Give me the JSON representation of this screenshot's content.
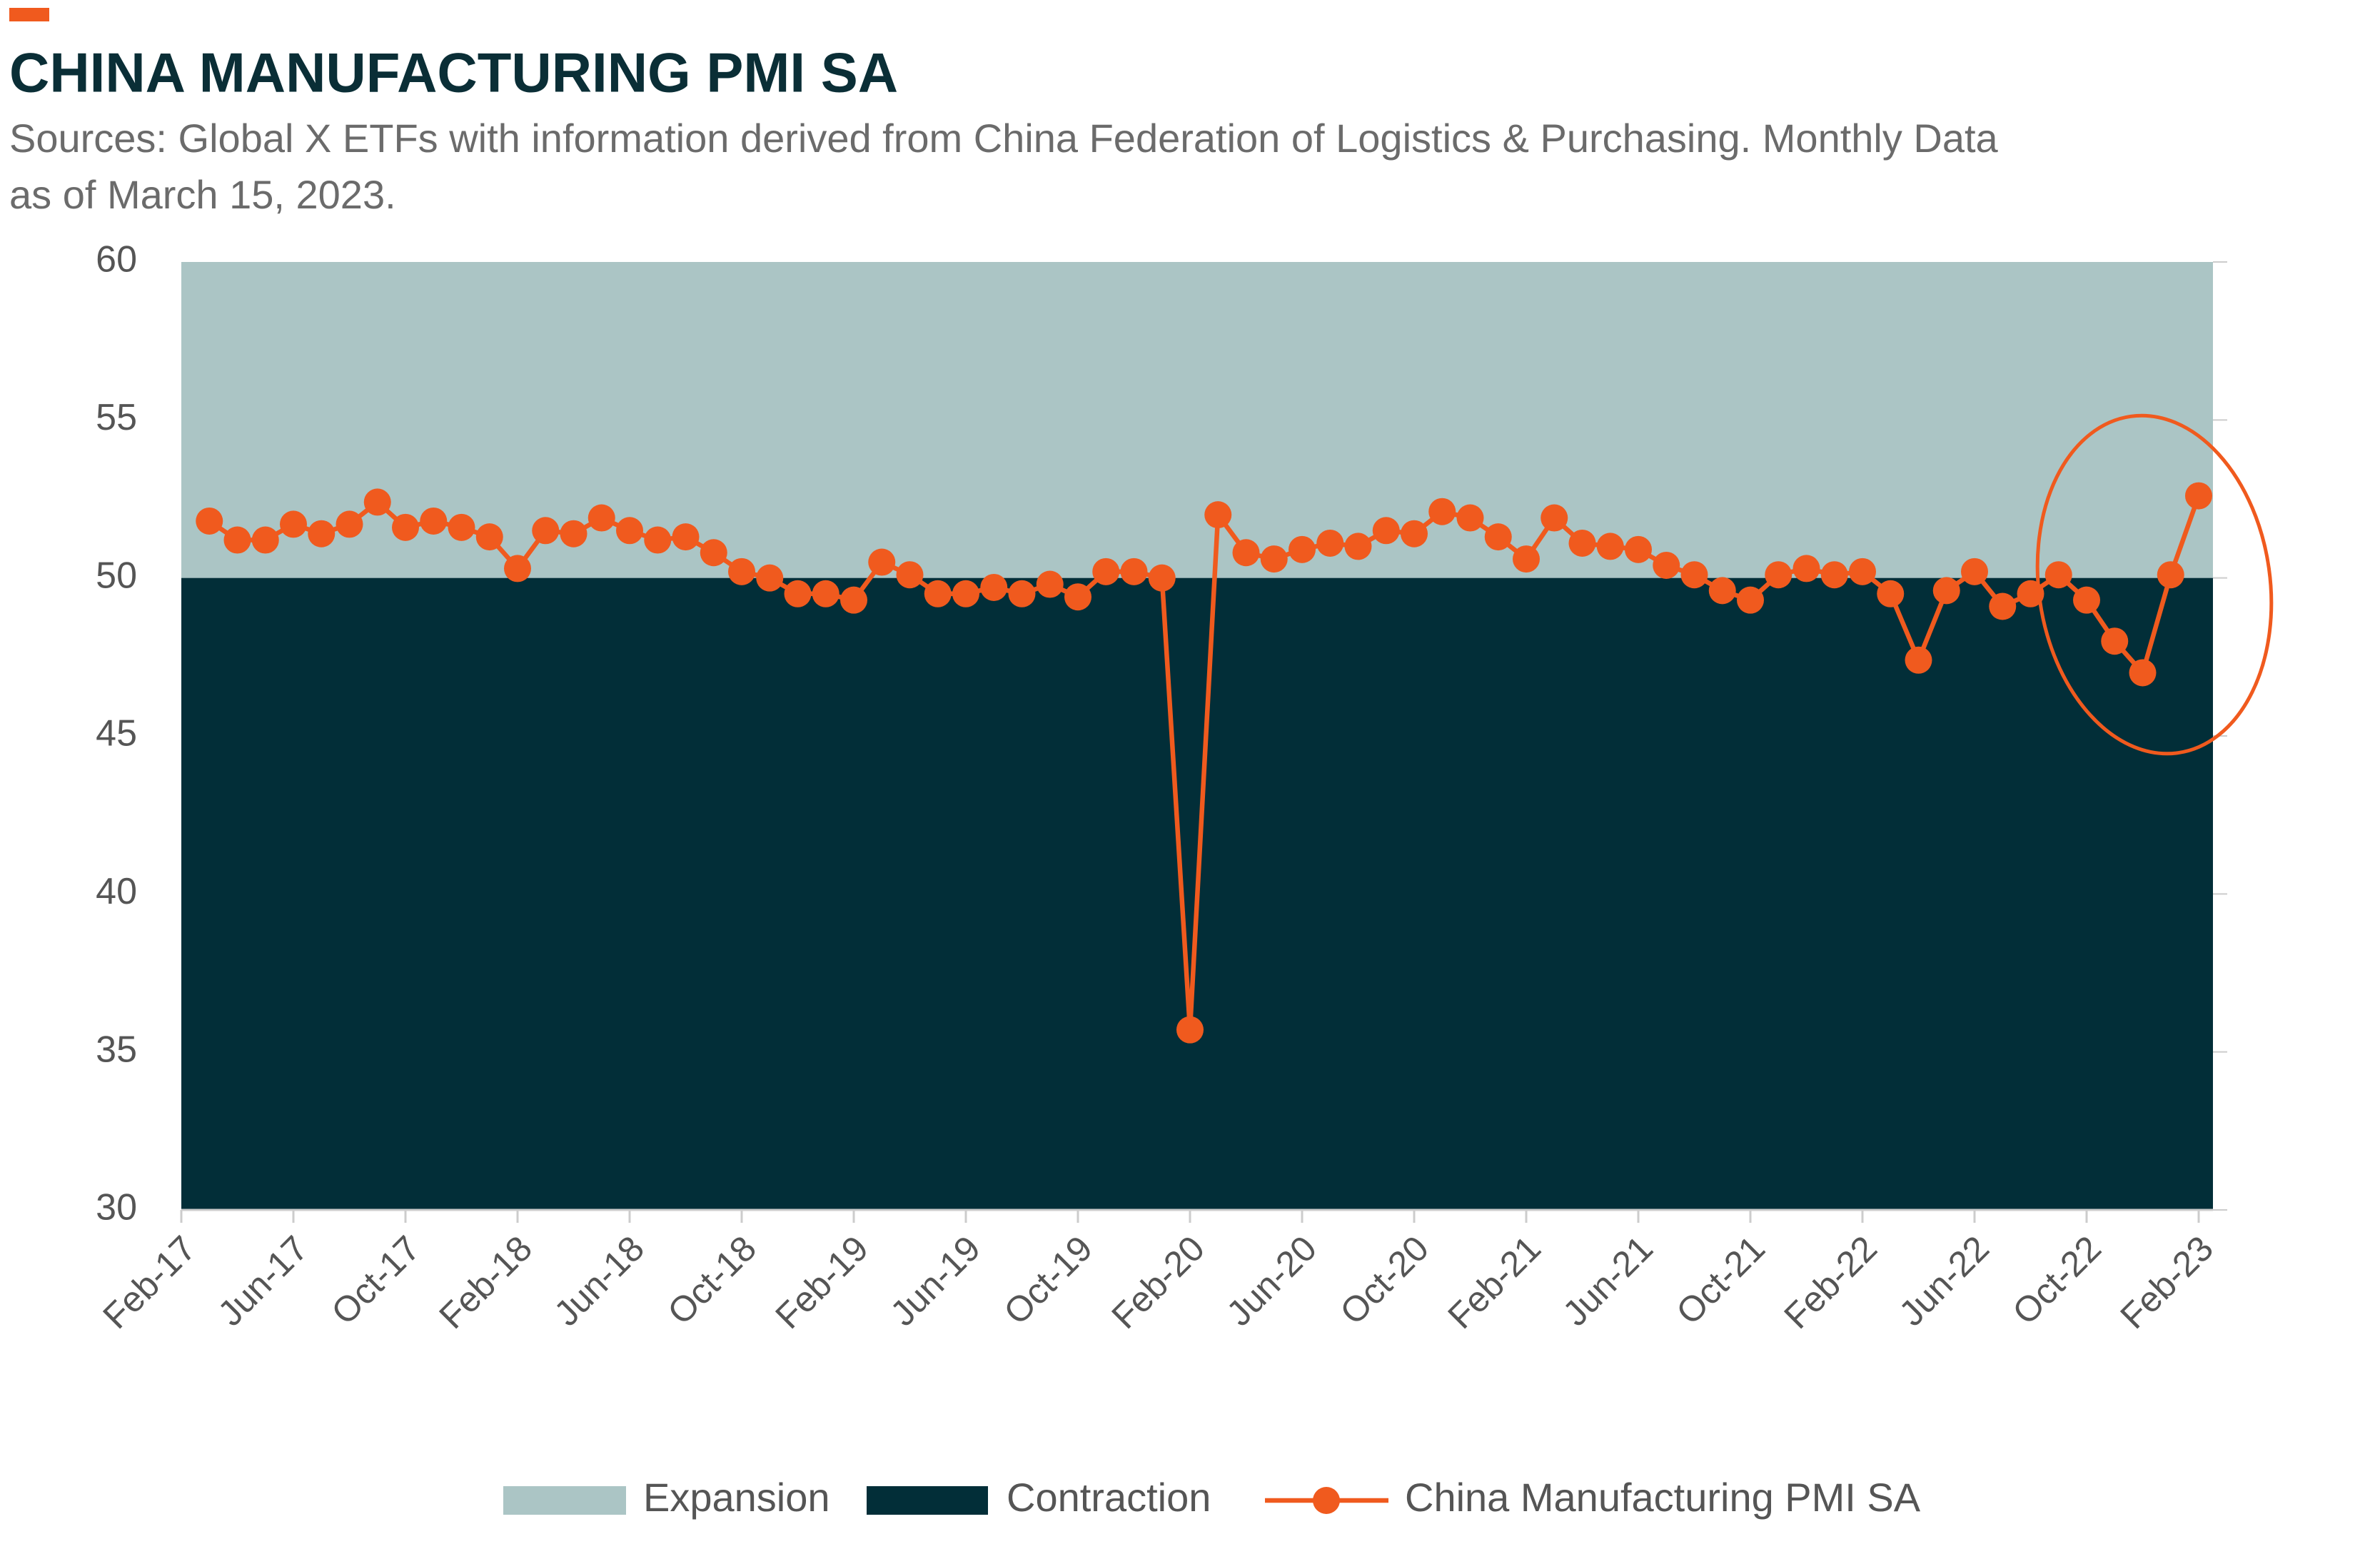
{
  "chart_data": {
    "type": "line",
    "title": "CHINA MANUFACTURING PMI SA",
    "subtitle_lines": [
      "Sources: Global X ETFs with information derived from China Federation of Logistics & Purchasing. Monthly Data",
      "as of March 15, 2023."
    ],
    "categories": [
      "Feb-17",
      null,
      null,
      null,
      "Jun-17",
      null,
      null,
      null,
      "Oct-17",
      null,
      null,
      null,
      "Feb-18",
      null,
      null,
      null,
      "Jun-18",
      null,
      null,
      null,
      "Oct-18",
      null,
      null,
      null,
      "Feb-19",
      null,
      null,
      null,
      "Jun-19",
      null,
      null,
      null,
      "Oct-19",
      null,
      null,
      null,
      "Feb-20",
      null,
      null,
      null,
      "Jun-20",
      null,
      null,
      null,
      "Oct-20",
      null,
      null,
      null,
      "Feb-21",
      null,
      null,
      null,
      "Jun-21",
      null,
      null,
      null,
      "Oct-21",
      null,
      null,
      null,
      "Feb-22",
      null,
      null,
      null,
      "Jun-22",
      null,
      null,
      null,
      "Oct-22",
      null,
      null,
      null,
      "Feb-23"
    ],
    "series": [
      {
        "name": "China Manufacturing PMI SA",
        "color": "#f05a1e",
        "values": [
          null,
          51.8,
          51.2,
          51.2,
          51.7,
          51.4,
          51.7,
          52.4,
          51.6,
          51.8,
          51.6,
          51.3,
          50.3,
          51.5,
          51.4,
          51.9,
          51.5,
          51.2,
          51.3,
          50.8,
          50.2,
          50.0,
          49.5,
          49.5,
          49.3,
          50.5,
          50.1,
          49.5,
          49.5,
          49.7,
          49.5,
          49.8,
          49.4,
          50.2,
          50.2,
          50.0,
          35.7,
          52.0,
          50.8,
          50.6,
          50.9,
          51.1,
          51.0,
          51.5,
          51.4,
          52.1,
          51.9,
          51.3,
          50.6,
          51.9,
          51.1,
          51.0,
          50.9,
          50.4,
          50.1,
          49.6,
          49.3,
          50.1,
          50.3,
          50.1,
          50.2,
          49.5,
          47.4,
          49.6,
          50.2,
          49.1,
          49.5,
          50.1,
          49.3,
          48.0,
          47.0,
          50.1,
          52.6
        ]
      }
    ],
    "bands": [
      {
        "name": "Expansion",
        "color": "#abc5c5",
        "range": [
          50,
          60
        ]
      },
      {
        "name": "Contraction",
        "color": "#022e38",
        "range": [
          30,
          50
        ]
      }
    ],
    "ylim": [
      30,
      60
    ],
    "yticks": [
      30,
      35,
      40,
      45,
      50,
      55,
      60
    ]
  }
}
